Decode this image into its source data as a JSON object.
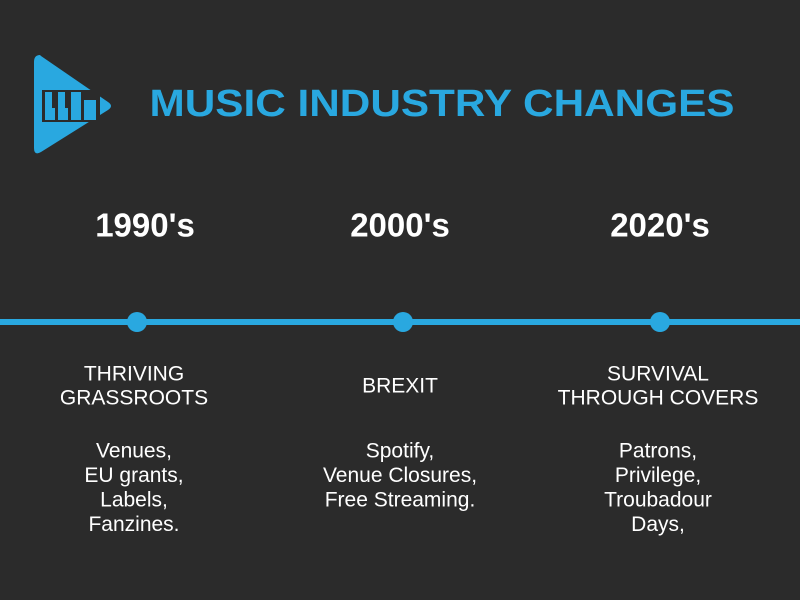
{
  "title": "MUSIC INDUSTRY CHANGES",
  "eras": [
    {
      "label": "1990's",
      "heading": [
        "THRIVING",
        "GRASSROOTS"
      ],
      "items": [
        "Venues,",
        "EU grants,",
        "Labels,",
        "Fanzines."
      ]
    },
    {
      "label": "2000's",
      "heading": [
        "BREXIT"
      ],
      "items": [
        "Spotify,",
        "Venue Closures,",
        "Free Streaming."
      ]
    },
    {
      "label": "2020's",
      "heading": [
        "SURVIVAL",
        "THROUGH COVERS"
      ],
      "items": [
        "Patrons,",
        "Privilege,",
        "Troubadour",
        "Days,"
      ]
    }
  ]
}
